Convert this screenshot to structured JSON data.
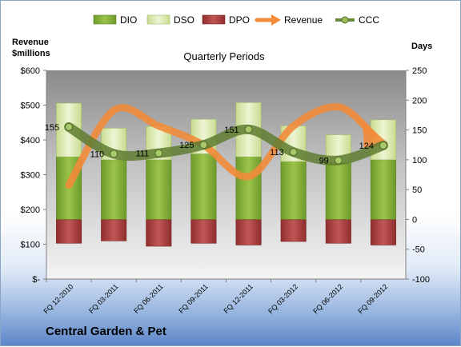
{
  "chart_data": {
    "type": "bar",
    "title": "Quarterly Periods",
    "company": "Central Garden & Pet",
    "left_axis_label_line1": "Revenue",
    "left_axis_label_line2": "$millions",
    "right_axis_label": "Days",
    "left_axis": {
      "ylim": [
        0,
        600
      ],
      "ticks": [
        "$-",
        "$100",
        "$200",
        "$300",
        "$400",
        "$500",
        "$600"
      ],
      "tick_values": [
        0,
        100,
        200,
        300,
        400,
        500,
        600
      ]
    },
    "right_axis": {
      "ylim": [
        -100,
        250
      ],
      "ticks": [
        "-100",
        "-50",
        "0",
        "50",
        "100",
        "150",
        "200",
        "250"
      ],
      "tick_values": [
        -100,
        -50,
        0,
        50,
        100,
        150,
        200,
        250
      ]
    },
    "categories": [
      "FQ 12-2010",
      "FQ 03-2011",
      "FQ 06-2011",
      "FQ 09-2011",
      "FQ 12-2011",
      "FQ 03-2012",
      "FQ 06-2012",
      "FQ 09-2012"
    ],
    "series": [
      {
        "name": "DIO",
        "axis": "right",
        "color": "#8cb43c",
        "values": [
          105,
          100,
          100,
          110,
          105,
          97,
          95,
          100
        ]
      },
      {
        "name": "DSO",
        "axis": "right",
        "color": "#dde9b2",
        "values": [
          90,
          53,
          56,
          58,
          91,
          60,
          47,
          67
        ]
      },
      {
        "name": "DPO",
        "axis": "right",
        "color": "#b84a4a",
        "values": [
          -40,
          -36,
          -45,
          -40,
          -43,
          -37,
          -40,
          -43
        ]
      },
      {
        "name": "Revenue",
        "axis": "left",
        "color": "#f28b3a",
        "values": [
          270,
          485,
          440,
          385,
          295,
          440,
          495,
          395
        ]
      },
      {
        "name": "CCC",
        "axis": "right",
        "color": "#6a8a3a",
        "values": [
          155,
          110,
          111,
          125,
          151,
          113,
          99,
          124
        ]
      }
    ],
    "ccc_labels": [
      "155",
      "110",
      "111",
      "125",
      "151",
      "113",
      "99",
      "124"
    ],
    "grid": false,
    "legend_position": "top"
  },
  "colors": {
    "background_top": "#ffffff",
    "background_bottom": "#5d86c9",
    "plot_bg": "#b0b0b0"
  }
}
